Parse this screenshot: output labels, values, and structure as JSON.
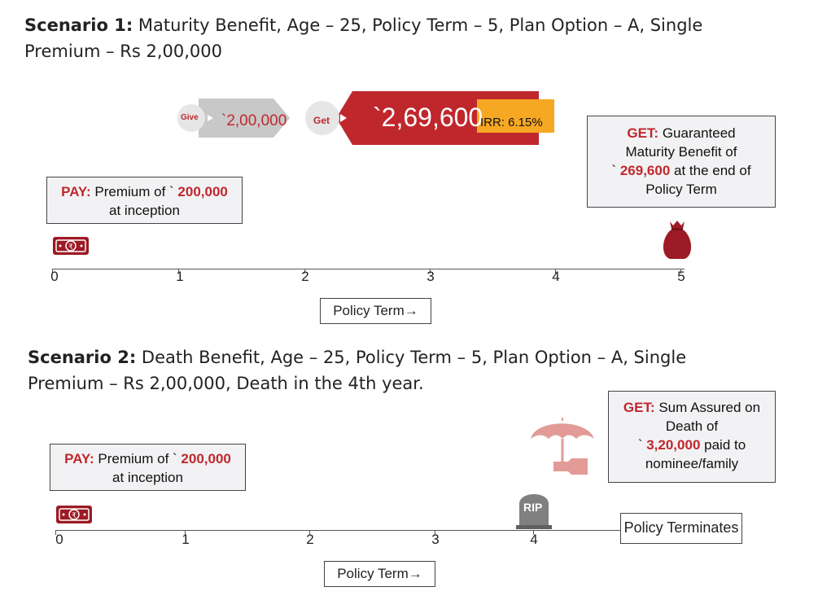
{
  "scenario1": {
    "title_bold": "Scenario 1:",
    "title_rest": " Maturity Benefit, Age – 25, Policy Term – 5, Plan Option – A, Single",
    "title_line2": "Premium – Rs 2,00,000",
    "give_label": "Give",
    "give_amount": "`2,00,000",
    "get_label": "Get",
    "get_amount": "`2,69,600",
    "irr": "IRR: 6.15%",
    "pay_box": {
      "lead": "PAY:",
      "text": " Premium of ` ",
      "amount": "200,000",
      "line2": "at inception"
    },
    "get_box": {
      "lead": "GET:",
      "text": " Guaranteed",
      "line2": "Maturity Benefit of",
      "line3_pre": "` ",
      "amount": "269,600",
      "line3_post": " at the end of",
      "line4": "Policy Term"
    },
    "ticks": [
      "0",
      "1",
      "2",
      "3",
      "4",
      "5"
    ],
    "policy_term": "Policy Term→"
  },
  "scenario2": {
    "title_bold": "Scenario 2:",
    "title_rest": " Death Benefit, Age – 25, Policy Term – 5, Plan Option – A, Single",
    "title_line2": "Premium – Rs 2,00,000, Death in the 4th year.",
    "pay_box": {
      "lead": "PAY:",
      "text": " Premium of ` ",
      "amount": "200,000",
      "line2": "at inception"
    },
    "get_box": {
      "lead": "GET:",
      "text": " Sum Assured on",
      "line2": "Death of",
      "line3_pre": "` ",
      "amount": "3,20,000",
      "line3_post": " paid to",
      "line4": "nominee/family"
    },
    "rip": "RIP",
    "ticks": [
      "0",
      "1",
      "2",
      "3",
      "4"
    ],
    "terminates": "Policy Terminates",
    "policy_term": "Policy Term→"
  },
  "colors": {
    "accent_red": "#c0272d",
    "arrow_grey": "#c8c8c8",
    "irr_orange": "#f7a823"
  }
}
